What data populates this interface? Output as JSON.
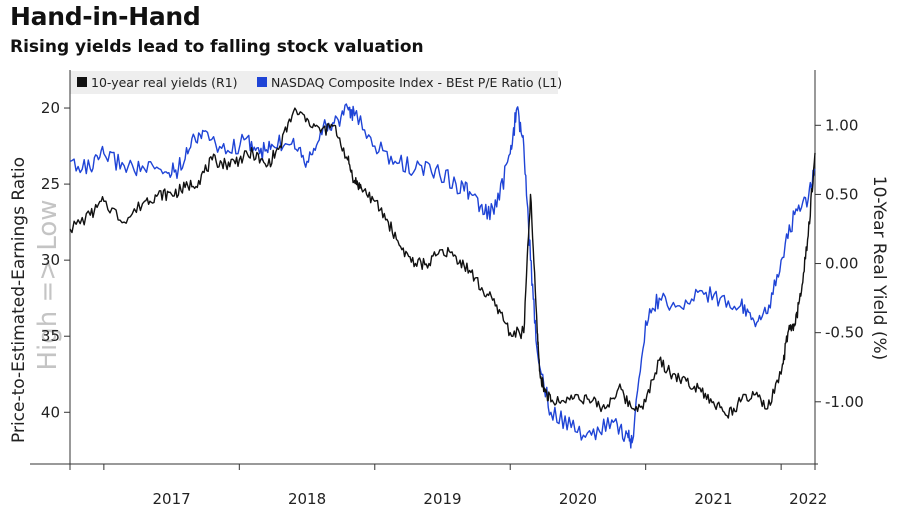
{
  "title": "Hand-in-Hand",
  "subtitle": "Rising yields lead to falling stock valuation",
  "colors": {
    "real_yields": "#111111",
    "pe_ratio": "#1f44d6",
    "axis": "#333333"
  },
  "chart_data": {
    "type": "line",
    "title": "Hand-in-Hand",
    "subtitle": "Rising yields lead to falling stock valuation",
    "legend_position": "top-left",
    "grid": false,
    "x_ticks": [
      "2017",
      "2018",
      "2019",
      "2020",
      "2021",
      "2022"
    ],
    "x_range": [
      2016.75,
      2022.25
    ],
    "left_axis": {
      "label": "Price-to-Estimated-Earnings Ratio",
      "ticks": [
        20,
        25,
        30,
        35,
        40
      ],
      "range": [
        17.5,
        43.4
      ],
      "inverted": true,
      "annotation": "High => Low"
    },
    "right_axis": {
      "label": "10-Year Real Yield (%)",
      "ticks": [
        "1.00",
        "0.50",
        "0.00",
        "-0.50",
        "-1.00"
      ],
      "tick_values": [
        1.0,
        0.5,
        0.0,
        -0.5,
        -1.0
      ],
      "range": [
        -1.45,
        1.4
      ]
    },
    "series": [
      {
        "name": "10-year real yields (R1)",
        "axis": "right",
        "x": [
          2016.75,
          2016.9,
          2017.0,
          2017.15,
          2017.3,
          2017.4,
          2017.5,
          2017.6,
          2017.7,
          2017.8,
          2017.9,
          2018.0,
          2018.1,
          2018.2,
          2018.3,
          2018.4,
          2018.5,
          2018.6,
          2018.7,
          2018.8,
          2018.85,
          2018.9,
          2019.0,
          2019.1,
          2019.2,
          2019.3,
          2019.4,
          2019.5,
          2019.6,
          2019.7,
          2019.8,
          2019.9,
          2020.0,
          2020.1,
          2020.15,
          2020.2,
          2020.22,
          2020.25,
          2020.3,
          2020.4,
          2020.5,
          2020.6,
          2020.7,
          2020.8,
          2020.9,
          2021.0,
          2021.1,
          2021.2,
          2021.3,
          2021.4,
          2021.5,
          2021.6,
          2021.7,
          2021.8,
          2021.9,
          2022.0,
          2022.05,
          2022.1,
          2022.15,
          2022.2,
          2022.25
        ],
        "y": [
          0.25,
          0.35,
          0.45,
          0.3,
          0.45,
          0.5,
          0.5,
          0.55,
          0.6,
          0.75,
          0.72,
          0.75,
          0.8,
          0.7,
          0.85,
          1.1,
          1.05,
          0.95,
          1.0,
          0.75,
          0.6,
          0.55,
          0.45,
          0.3,
          0.1,
          0.0,
          0.0,
          0.1,
          0.05,
          -0.05,
          -0.2,
          -0.3,
          -0.5,
          -0.5,
          0.5,
          -0.5,
          -0.8,
          -0.9,
          -1.0,
          -1.0,
          -0.95,
          -1.0,
          -1.05,
          -0.9,
          -1.05,
          -1.0,
          -0.7,
          -0.8,
          -0.85,
          -0.9,
          -1.0,
          -1.1,
          -1.0,
          -0.95,
          -1.05,
          -0.8,
          -0.5,
          -0.45,
          -0.2,
          0.2,
          0.8
        ]
      },
      {
        "name": "NASDAQ Composite Index - BEst P/E Ratio (L1)",
        "axis": "left",
        "x": [
          2016.75,
          2016.9,
          2017.0,
          2017.15,
          2017.3,
          2017.45,
          2017.55,
          2017.65,
          2017.75,
          2017.9,
          2018.05,
          2018.15,
          2018.25,
          2018.4,
          2018.5,
          2018.6,
          2018.7,
          2018.8,
          2018.85,
          2019.0,
          2019.15,
          2019.3,
          2019.45,
          2019.6,
          2019.7,
          2019.8,
          2019.9,
          2020.0,
          2020.05,
          2020.1,
          2020.15,
          2020.2,
          2020.3,
          2020.45,
          2020.6,
          2020.75,
          2020.85,
          2020.9,
          2021.0,
          2021.1,
          2021.25,
          2021.4,
          2021.55,
          2021.7,
          2021.8,
          2021.9,
          2022.0,
          2022.1,
          2022.2,
          2022.25
        ],
        "y": [
          23.5,
          24.0,
          23.0,
          23.8,
          24.0,
          24.2,
          24.0,
          22.0,
          21.5,
          23.0,
          22.0,
          23.0,
          22.5,
          22.0,
          23.5,
          21.5,
          21.0,
          20.0,
          20.5,
          22.5,
          23.5,
          24.0,
          24.0,
          25.0,
          25.5,
          27.0,
          26.5,
          23.0,
          20.0,
          22.5,
          30.0,
          36.0,
          40.0,
          41.0,
          41.5,
          40.5,
          41.5,
          42.0,
          34.0,
          32.5,
          33.0,
          32.0,
          32.5,
          33.0,
          34.0,
          33.5,
          30.0,
          27.0,
          26.0,
          24.0
        ]
      }
    ]
  }
}
